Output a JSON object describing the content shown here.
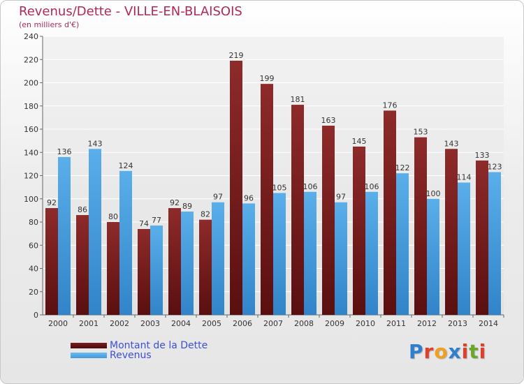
{
  "header": {
    "title": "Revenus/Dette - VILLE-EN-BLAISOIS",
    "subtitle": "(en milliers d'€)"
  },
  "legend": {
    "debt_label": "Montant de la Dette",
    "revenue_label": "Revenus"
  },
  "logo": {
    "letters": [
      "P",
      "r",
      "o",
      "x",
      "i",
      "t",
      "i"
    ],
    "colors": [
      "#2f7fd0",
      "#e0402a",
      "#f0a020",
      "#2f7fd0",
      "#e0402a",
      "#6aa82c",
      "#e0402a"
    ]
  },
  "colors": {
    "debt": "#7a1c1c",
    "revenue": "#3f9be0",
    "title": "#b0285a",
    "legend_text": "#3d4fd6"
  },
  "chart_data": {
    "type": "bar",
    "categories": [
      "2000",
      "2001",
      "2002",
      "2003",
      "2004",
      "2005",
      "2006",
      "2007",
      "2008",
      "2009",
      "2010",
      "2011",
      "2012",
      "2013",
      "2014"
    ],
    "series": [
      {
        "name": "Montant de la Dette",
        "values": [
          92,
          86,
          80,
          74,
          92,
          82,
          219,
          199,
          181,
          163,
          145,
          176,
          153,
          143,
          133
        ]
      },
      {
        "name": "Revenus",
        "values": [
          136,
          143,
          124,
          77,
          89,
          97,
          96,
          105,
          106,
          97,
          106,
          122,
          100,
          114,
          123
        ]
      }
    ],
    "yticks": [
      0,
      20,
      40,
      60,
      80,
      100,
      120,
      140,
      160,
      180,
      200,
      220,
      240
    ],
    "ylim": [
      0,
      240
    ],
    "grid": true,
    "legend_position": "bottom-left"
  }
}
